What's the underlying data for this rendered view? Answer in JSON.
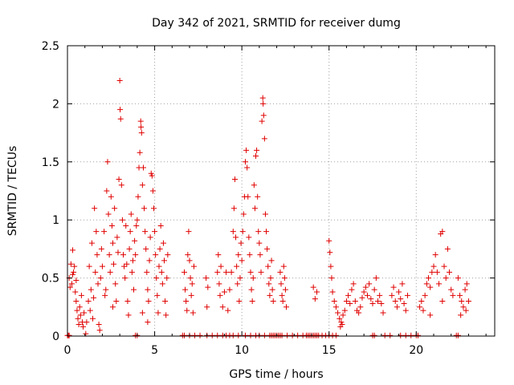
{
  "chart_data": {
    "type": "scatter",
    "title": "Day 342 of 2021, SRMTID for receiver dumg",
    "xlabel": "GPS time / hours",
    "ylabel": "SRMTID / TECUs",
    "xlim": [
      0,
      24.5
    ],
    "ylim": [
      0,
      2.5
    ],
    "x_ticks": [
      "0",
      "5",
      "10",
      "15",
      "20"
    ],
    "x_tick_values": [
      0,
      5,
      10,
      15,
      20
    ],
    "y_ticks": [
      "0",
      "0.5",
      "1",
      "1.5",
      "2",
      "2.5"
    ],
    "y_tick_values": [
      0,
      0.5,
      1,
      1.5,
      2,
      2.5
    ],
    "grid": true,
    "marker": "+",
    "marker_color": "#e00000",
    "series": [
      {
        "name": "SRMTID",
        "points": [
          [
            0.1,
            0.5
          ],
          [
            0.2,
            0.62
          ],
          [
            0.25,
            0.45
          ],
          [
            0.3,
            0.74
          ],
          [
            0.35,
            0.55
          ],
          [
            0.4,
            0.6
          ],
          [
            0.45,
            0.38
          ],
          [
            0.5,
            0.3
          ],
          [
            0.55,
            0.22
          ],
          [
            0.6,
            0.15
          ],
          [
            0.65,
            0.1
          ],
          [
            0.7,
            0.25
          ],
          [
            0.75,
            0.18
          ],
          [
            0.8,
            0.35
          ],
          [
            0.85,
            0.12
          ],
          [
            0.9,
            0.08
          ],
          [
            0.95,
            0.2
          ],
          [
            0.15,
            0.42
          ],
          [
            0.3,
            0.53
          ],
          [
            0.5,
            0.48
          ],
          [
            1.05,
            0.02
          ],
          [
            1.1,
            0.12
          ],
          [
            1.2,
            0.3
          ],
          [
            1.3,
            0.22
          ],
          [
            1.35,
            0.4
          ],
          [
            1.45,
            0.15
          ],
          [
            1.5,
            0.33
          ],
          [
            1.6,
            0.55
          ],
          [
            1.65,
            0.9
          ],
          [
            1.7,
            0.7
          ],
          [
            1.75,
            0.45
          ],
          [
            1.8,
            0.1
          ],
          [
            1.85,
            0.05
          ],
          [
            1.9,
            0.5
          ],
          [
            1.95,
            0.75
          ],
          [
            1.55,
            1.1
          ],
          [
            1.25,
            0.6
          ],
          [
            1.4,
            0.8
          ],
          [
            2.0,
            0.6
          ],
          [
            2.1,
            0.9
          ],
          [
            2.2,
            0.4
          ],
          [
            2.25,
            1.25
          ],
          [
            2.3,
            1.5
          ],
          [
            2.35,
            1.05
          ],
          [
            2.4,
            0.7
          ],
          [
            2.45,
            0.55
          ],
          [
            2.5,
            1.2
          ],
          [
            2.55,
            0.95
          ],
          [
            2.6,
            0.8
          ],
          [
            2.65,
            0.62
          ],
          [
            2.7,
            1.1
          ],
          [
            2.75,
            0.45
          ],
          [
            2.8,
            0.3
          ],
          [
            2.85,
            0.85
          ],
          [
            2.9,
            0.72
          ],
          [
            2.95,
            1.35
          ],
          [
            3.0,
            2.2
          ],
          [
            3.02,
            1.95
          ],
          [
            3.05,
            1.87
          ],
          [
            3.1,
            1.3
          ],
          [
            3.15,
            1.0
          ],
          [
            3.2,
            0.7
          ],
          [
            3.25,
            0.6
          ],
          [
            3.3,
            0.5
          ],
          [
            3.35,
            0.95
          ],
          [
            3.4,
            0.62
          ],
          [
            3.45,
            0.3
          ],
          [
            3.5,
            0.18
          ],
          [
            3.55,
            0.75
          ],
          [
            3.6,
            0.9
          ],
          [
            3.65,
            1.05
          ],
          [
            3.7,
            0.55
          ],
          [
            3.75,
            0.65
          ],
          [
            3.8,
            0.4
          ],
          [
            3.85,
            0.82
          ],
          [
            3.9,
            0.7
          ],
          [
            3.95,
            0.95
          ],
          [
            2.15,
            0.35
          ],
          [
            2.6,
            0.25
          ],
          [
            4.0,
            1.0
          ],
          [
            4.05,
            1.2
          ],
          [
            4.1,
            1.45
          ],
          [
            4.15,
            1.58
          ],
          [
            4.2,
            1.85
          ],
          [
            4.22,
            1.8
          ],
          [
            4.25,
            1.75
          ],
          [
            4.3,
            1.3
          ],
          [
            4.35,
            1.45
          ],
          [
            4.4,
            1.1
          ],
          [
            4.45,
            0.9
          ],
          [
            4.5,
            0.75
          ],
          [
            4.55,
            0.55
          ],
          [
            4.6,
            0.4
          ],
          [
            4.65,
            0.3
          ],
          [
            4.7,
            0.65
          ],
          [
            4.75,
            0.85
          ],
          [
            4.8,
            1.4
          ],
          [
            4.85,
            1.38
          ],
          [
            4.9,
            1.25
          ],
          [
            4.95,
            1.1
          ],
          [
            5.0,
            0.9
          ],
          [
            5.05,
            0.7
          ],
          [
            5.1,
            0.5
          ],
          [
            5.15,
            0.35
          ],
          [
            5.2,
            0.2
          ],
          [
            5.25,
            0.6
          ],
          [
            5.3,
            0.75
          ],
          [
            5.35,
            0.95
          ],
          [
            5.4,
            0.55
          ],
          [
            5.45,
            0.45
          ],
          [
            5.5,
            0.8
          ],
          [
            5.55,
            0.65
          ],
          [
            5.6,
            0.3
          ],
          [
            5.65,
            0.18
          ],
          [
            5.7,
            0.5
          ],
          [
            5.75,
            0.7
          ],
          [
            4.3,
            0.2
          ],
          [
            4.6,
            0.12
          ],
          [
            6.7,
            0.55
          ],
          [
            6.75,
            0.4
          ],
          [
            6.8,
            0.3
          ],
          [
            6.85,
            0.22
          ],
          [
            6.9,
            0.7
          ],
          [
            6.95,
            0.9
          ],
          [
            7.0,
            0.65
          ],
          [
            7.05,
            0.5
          ],
          [
            7.1,
            0.35
          ],
          [
            7.15,
            0.45
          ],
          [
            7.2,
            0.2
          ],
          [
            7.25,
            0.6
          ],
          [
            7.95,
            0.5
          ],
          [
            8.0,
            0.25
          ],
          [
            8.05,
            0.42
          ],
          [
            8.6,
            0.55
          ],
          [
            8.65,
            0.7
          ],
          [
            8.7,
            0.45
          ],
          [
            8.75,
            0.35
          ],
          [
            8.8,
            0.6
          ],
          [
            8.9,
            0.25
          ],
          [
            9.0,
            0.38
          ],
          [
            9.1,
            0.55
          ],
          [
            9.2,
            0.22
          ],
          [
            9.3,
            0.4
          ],
          [
            9.4,
            0.55
          ],
          [
            9.5,
            0.9
          ],
          [
            9.55,
            1.1
          ],
          [
            9.6,
            1.35
          ],
          [
            9.65,
            0.85
          ],
          [
            9.7,
            0.6
          ],
          [
            9.75,
            0.45
          ],
          [
            9.8,
            0.7
          ],
          [
            9.85,
            0.3
          ],
          [
            9.9,
            0.5
          ],
          [
            9.95,
            0.8
          ],
          [
            10.0,
            0.65
          ],
          [
            10.05,
            0.9
          ],
          [
            10.1,
            1.05
          ],
          [
            10.15,
            1.2
          ],
          [
            10.2,
            1.5
          ],
          [
            10.25,
            1.6
          ],
          [
            10.3,
            1.45
          ],
          [
            10.35,
            1.2
          ],
          [
            10.4,
            0.85
          ],
          [
            10.45,
            0.7
          ],
          [
            10.5,
            0.55
          ],
          [
            10.55,
            0.4
          ],
          [
            10.6,
            0.3
          ],
          [
            10.65,
            0.5
          ],
          [
            10.7,
            1.3
          ],
          [
            10.75,
            1.1
          ],
          [
            10.8,
            1.55
          ],
          [
            10.85,
            1.6
          ],
          [
            10.9,
            1.2
          ],
          [
            10.95,
            0.9
          ],
          [
            11.0,
            0.8
          ],
          [
            11.05,
            0.7
          ],
          [
            11.1,
            0.55
          ],
          [
            11.15,
            1.85
          ],
          [
            11.2,
            2.05
          ],
          [
            11.22,
            2.0
          ],
          [
            11.25,
            1.9
          ],
          [
            11.3,
            1.7
          ],
          [
            11.35,
            1.05
          ],
          [
            11.4,
            0.9
          ],
          [
            11.45,
            0.75
          ],
          [
            11.5,
            0.6
          ],
          [
            11.55,
            0.45
          ],
          [
            11.6,
            0.35
          ],
          [
            11.65,
            0.5
          ],
          [
            11.7,
            0.65
          ],
          [
            11.75,
            0.4
          ],
          [
            11.8,
            0.3
          ],
          [
            12.2,
            0.55
          ],
          [
            12.25,
            0.45
          ],
          [
            12.3,
            0.35
          ],
          [
            12.35,
            0.3
          ],
          [
            12.4,
            0.6
          ],
          [
            12.45,
            0.5
          ],
          [
            12.5,
            0.4
          ],
          [
            12.55,
            0.25
          ],
          [
            14.1,
            0.42
          ],
          [
            14.2,
            0.32
          ],
          [
            14.3,
            0.38
          ],
          [
            15.0,
            0.82
          ],
          [
            15.05,
            0.72
          ],
          [
            15.1,
            0.6
          ],
          [
            15.15,
            0.5
          ],
          [
            15.2,
            0.38
          ],
          [
            15.3,
            0.3
          ],
          [
            15.4,
            0.25
          ],
          [
            15.5,
            0.2
          ],
          [
            15.6,
            0.15
          ],
          [
            15.7,
            0.12
          ],
          [
            15.8,
            0.18
          ],
          [
            15.9,
            0.22
          ],
          [
            16.0,
            0.3
          ],
          [
            16.1,
            0.35
          ],
          [
            16.2,
            0.28
          ],
          [
            16.3,
            0.4
          ],
          [
            16.4,
            0.45
          ],
          [
            16.5,
            0.3
          ],
          [
            16.6,
            0.22
          ],
          [
            16.7,
            0.2
          ],
          [
            16.8,
            0.25
          ],
          [
            16.9,
            0.33
          ],
          [
            17.0,
            0.38
          ],
          [
            17.1,
            0.42
          ],
          [
            17.2,
            0.35
          ],
          [
            17.3,
            0.45
          ],
          [
            17.4,
            0.32
          ],
          [
            17.5,
            0.28
          ],
          [
            17.6,
            0.4
          ],
          [
            17.7,
            0.5
          ],
          [
            17.8,
            0.3
          ],
          [
            17.9,
            0.35
          ],
          [
            18.0,
            0.28
          ],
          [
            18.1,
            0.2
          ],
          [
            15.65,
            0.08
          ],
          [
            15.75,
            0.1
          ],
          [
            18.6,
            0.35
          ],
          [
            18.7,
            0.42
          ],
          [
            18.8,
            0.3
          ],
          [
            18.9,
            0.25
          ],
          [
            19.0,
            0.38
          ],
          [
            19.1,
            0.32
          ],
          [
            19.2,
            0.45
          ],
          [
            19.3,
            0.28
          ],
          [
            19.4,
            0.22
          ],
          [
            19.5,
            0.35
          ],
          [
            20.2,
            0.25
          ],
          [
            20.3,
            0.3
          ],
          [
            20.4,
            0.22
          ],
          [
            20.5,
            0.35
          ],
          [
            20.6,
            0.45
          ],
          [
            20.7,
            0.5
          ],
          [
            20.8,
            0.42
          ],
          [
            20.9,
            0.55
          ],
          [
            21.0,
            0.6
          ],
          [
            21.1,
            0.7
          ],
          [
            21.2,
            0.55
          ],
          [
            21.3,
            0.45
          ],
          [
            21.4,
            0.88
          ],
          [
            21.5,
            0.9
          ],
          [
            21.6,
            0.6
          ],
          [
            21.7,
            0.5
          ],
          [
            21.8,
            0.75
          ],
          [
            21.9,
            0.55
          ],
          [
            22.0,
            0.4
          ],
          [
            22.1,
            0.35
          ],
          [
            20.8,
            0.18
          ],
          [
            21.5,
            0.3
          ],
          [
            22.4,
            0.5
          ],
          [
            22.5,
            0.35
          ],
          [
            22.6,
            0.3
          ],
          [
            22.7,
            0.25
          ],
          [
            22.8,
            0.4
          ],
          [
            22.9,
            0.45
          ],
          [
            23.0,
            0.3
          ],
          [
            22.55,
            0.18
          ],
          [
            22.85,
            0.22
          ]
        ]
      }
    ],
    "zero_band_x": [
      0.0,
      0.05,
      0.1,
      3.9,
      4.0,
      6.6,
      6.7,
      7.0,
      7.3,
      7.6,
      8.0,
      8.3,
      8.6,
      8.9,
      9.1,
      9.3,
      9.5,
      9.8,
      10.2,
      10.5,
      10.8,
      11.0,
      11.3,
      11.6,
      11.7,
      11.8,
      11.9,
      12.0,
      12.1,
      12.2,
      12.3,
      12.6,
      12.9,
      13.2,
      13.5,
      13.7,
      13.8,
      13.9,
      14.0,
      14.1,
      14.2,
      14.3,
      14.4,
      14.6,
      14.8,
      15.0,
      15.2,
      15.4,
      17.5,
      17.6,
      18.2,
      18.5,
      19.1,
      19.4,
      19.7,
      20.0,
      20.1,
      22.3,
      22.4
    ]
  }
}
